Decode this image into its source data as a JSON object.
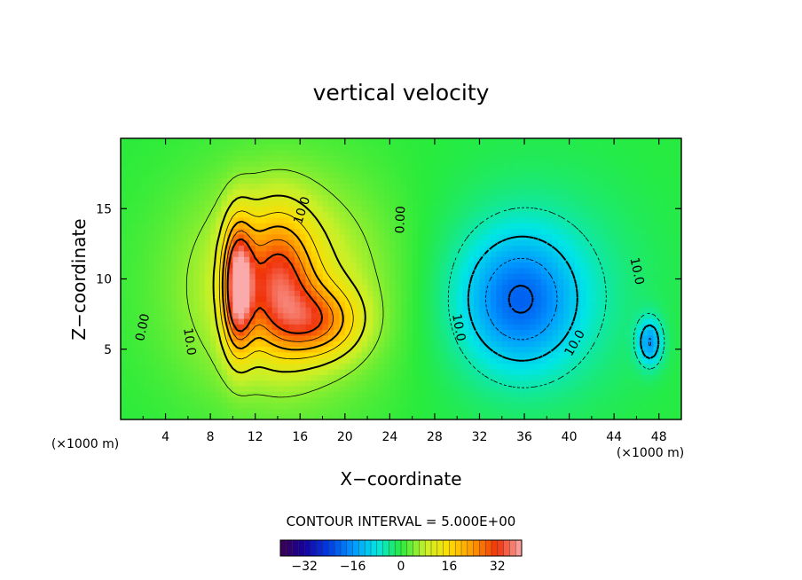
{
  "chart_data": {
    "type": "heatmap",
    "title": "vertical velocity",
    "xlabel": "X−coordinate",
    "ylabel": "Z−coordinate",
    "x_unit": "(×1000 m)",
    "y_unit": "(×1000 m)",
    "xlim": [
      0,
      50
    ],
    "ylim": [
      0,
      20
    ],
    "x_ticks": [
      4,
      8,
      12,
      16,
      20,
      24,
      28,
      32,
      36,
      40,
      44,
      48
    ],
    "y_ticks": [
      5,
      10,
      15
    ],
    "contour_interval_text": "CONTOUR INTERVAL = 5.000E+00",
    "contour_interval": 5.0,
    "contour_labels": [
      {
        "text": "0.00",
        "x": 2.3,
        "y": 6.5,
        "angle": -78
      },
      {
        "text": "10.0",
        "x": 5.8,
        "y": 5.5,
        "angle": 82
      },
      {
        "text": "10.0",
        "x": 16.5,
        "y": 14.8,
        "angle": -72
      },
      {
        "text": "0.00",
        "x": 25.3,
        "y": 14.2,
        "angle": -88
      },
      {
        "text": "10.0",
        "x": 29.8,
        "y": 6.5,
        "angle": 80
      },
      {
        "text": "10.0",
        "x": 40.8,
        "y": 5.3,
        "angle": -60
      },
      {
        "text": "10.0",
        "x": 45.7,
        "y": 10.5,
        "angle": 78
      }
    ],
    "field_features": [
      {
        "kind": "updraft",
        "x": 10.5,
        "z": 9.5,
        "peak": 32,
        "sx": 0.9,
        "sz": 3.0
      },
      {
        "kind": "updraft",
        "x": 14.0,
        "z": 10.0,
        "peak": 22,
        "sx": 2.2,
        "sz": 3.2
      },
      {
        "kind": "updraft",
        "x": 17.5,
        "z": 7.0,
        "peak": 18,
        "sx": 2.6,
        "sz": 1.7
      },
      {
        "kind": "updraft",
        "x": 14.5,
        "z": 9.5,
        "peak": 12,
        "sx": 6.5,
        "sz": 5.5
      },
      {
        "kind": "downdraft",
        "x": 35.5,
        "z": 8.5,
        "peak": -15,
        "sx": 3.5,
        "sz": 3.2
      },
      {
        "kind": "downdraft",
        "x": 37.0,
        "z": 9.0,
        "peak": -6,
        "sx": 6.5,
        "sz": 5.5
      },
      {
        "kind": "downdraft",
        "x": 47.2,
        "z": 5.5,
        "peak": -14,
        "sx": 0.8,
        "sz": 1.2
      }
    ],
    "colorbar": {
      "min": -40,
      "max": 40,
      "tick_values": [
        -32,
        -16,
        0,
        16,
        32
      ],
      "tick_labels": [
        "−32",
        "−16",
        "0",
        "16",
        "32"
      ]
    }
  }
}
